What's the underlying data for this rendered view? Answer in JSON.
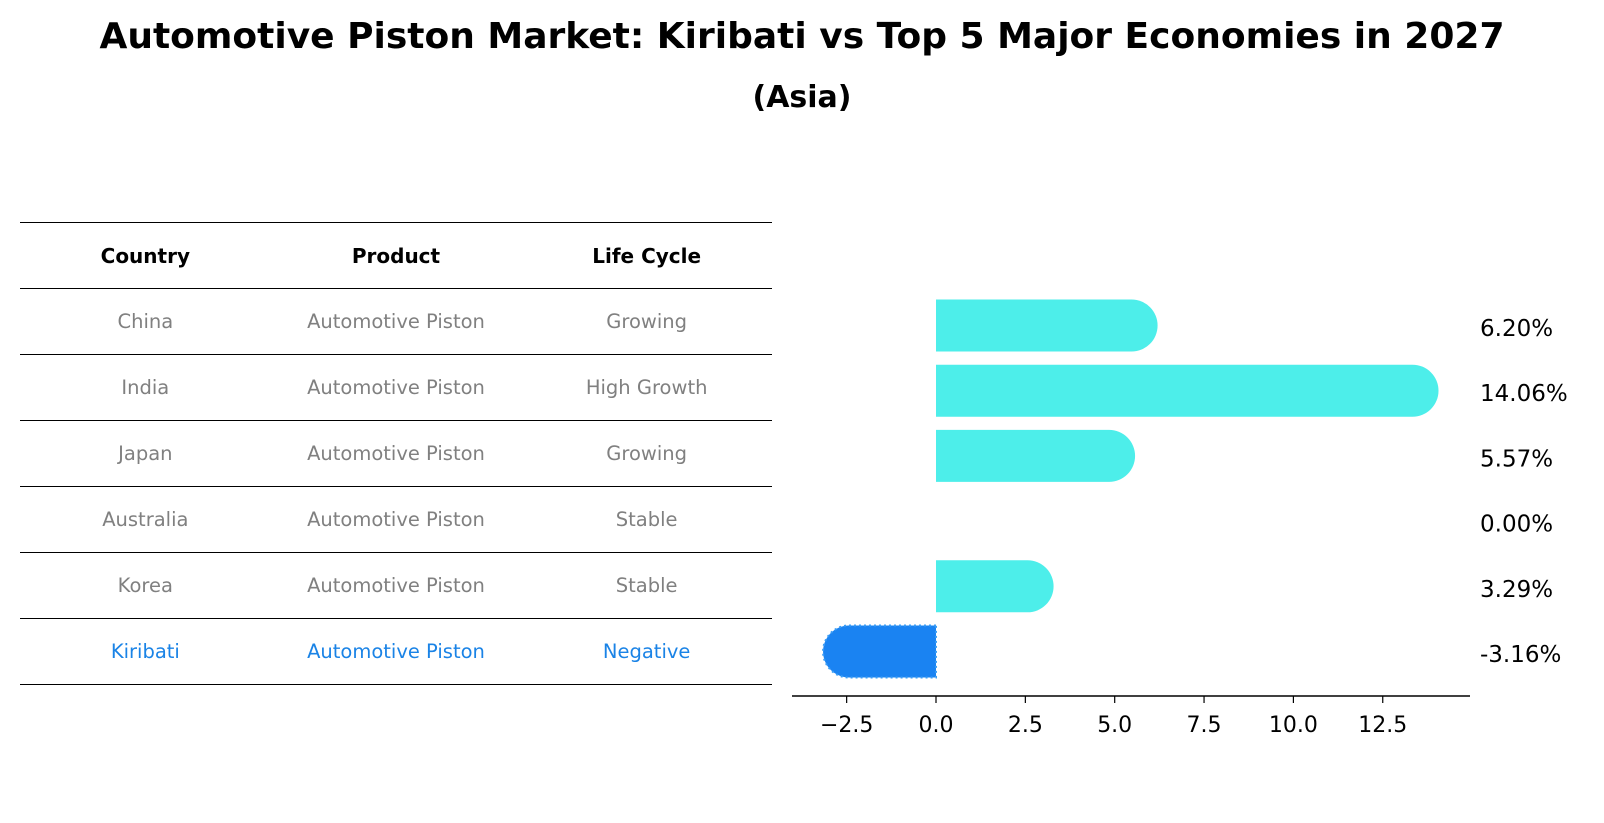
{
  "header": {
    "title": "Automotive Piston Market: Kiribati vs Top 5 Major Economies in 2027",
    "subtitle": "(Asia)"
  },
  "table": {
    "columns": [
      "Country",
      "Product",
      "Life Cycle"
    ],
    "rows": [
      {
        "country": "China",
        "product": "Automotive Piston",
        "life_cycle": "Growing"
      },
      {
        "country": "India",
        "product": "Automotive Piston",
        "life_cycle": "High Growth"
      },
      {
        "country": "Japan",
        "product": "Automotive Piston",
        "life_cycle": "Growing"
      },
      {
        "country": "Australia",
        "product": "Automotive Piston",
        "life_cycle": "Stable"
      },
      {
        "country": "Korea",
        "product": "Automotive Piston",
        "life_cycle": "Stable"
      },
      {
        "country": "Kiribati",
        "product": "Automotive Piston",
        "life_cycle": "Negative"
      }
    ]
  },
  "colors": {
    "bar": "#4deeea",
    "highlight": "#1a83f2",
    "table_text": "#808080",
    "table_highlight_text": "#1a83e6"
  },
  "chart_data": {
    "type": "bar",
    "orientation": "horizontal",
    "categories": [
      "China",
      "India",
      "Japan",
      "Australia",
      "Korea",
      "Kiribati"
    ],
    "values": [
      6.2,
      14.06,
      5.57,
      0.0,
      3.29,
      -3.16
    ],
    "value_labels": [
      "6.20%",
      "14.06%",
      "5.57%",
      "0.00%",
      "3.29%",
      "-3.16%"
    ],
    "highlight_category": "Kiribati",
    "xlim": [
      -4.0,
      15.0
    ],
    "xticks": [
      -2.5,
      0.0,
      2.5,
      5.0,
      7.5,
      10.0,
      12.5
    ],
    "xtick_labels": [
      "−2.5",
      "0.0",
      "2.5",
      "5.0",
      "7.5",
      "10.0",
      "12.5"
    ],
    "grid": false
  }
}
